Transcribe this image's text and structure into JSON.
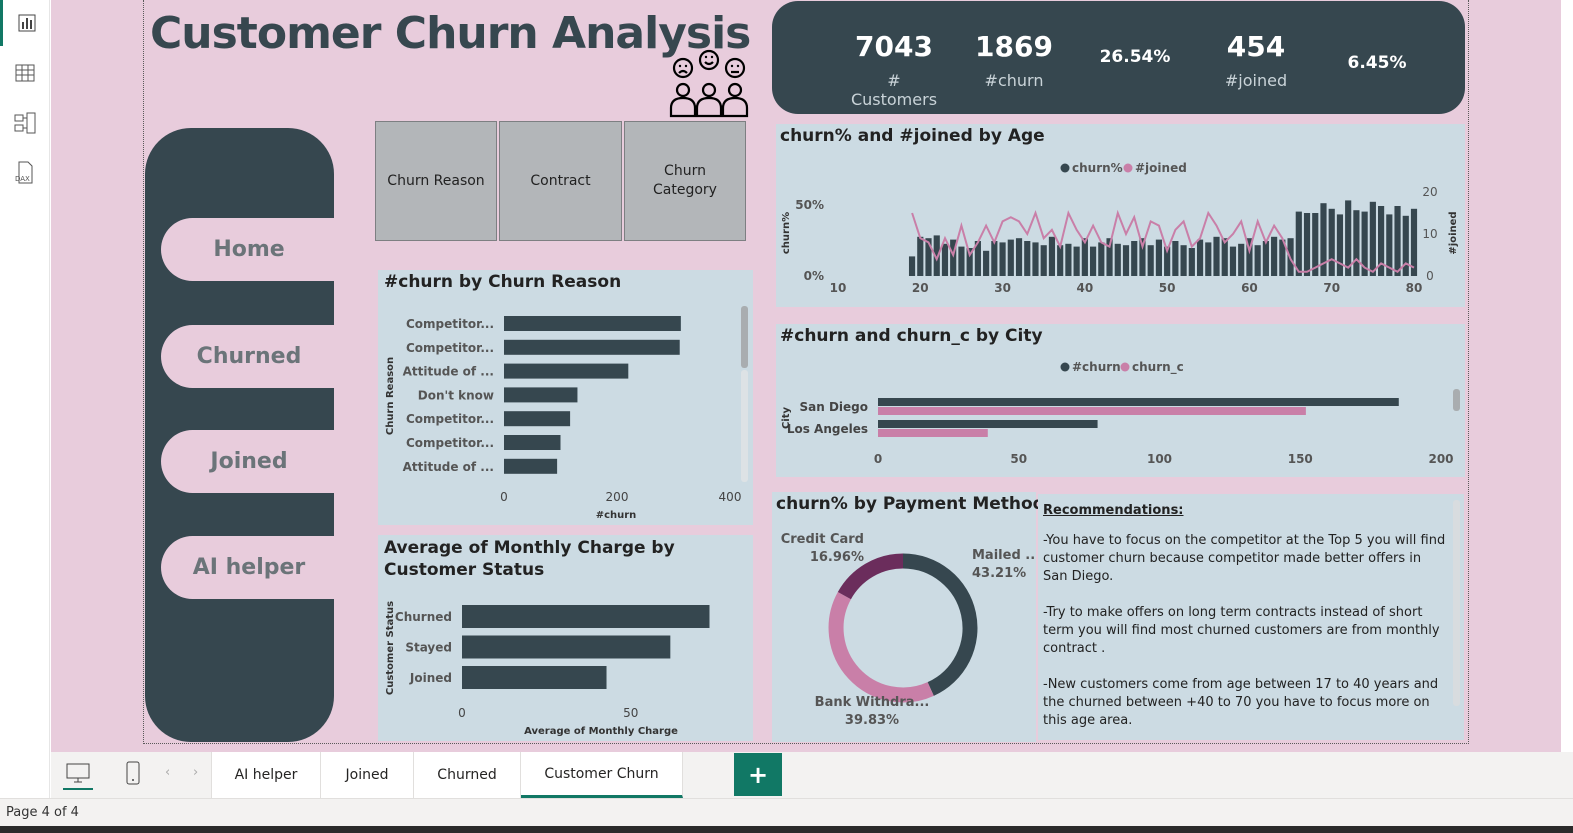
{
  "title": "Customer Churn Analysis",
  "kpis": [
    {
      "value": "7043",
      "label": "# Customers"
    },
    {
      "value": "1869",
      "label": "#churn"
    },
    {
      "value": "26.54%",
      "label": ""
    },
    {
      "value": "454",
      "label": "#joined"
    },
    {
      "value": "6.45%",
      "label": ""
    }
  ],
  "nav": [
    "Home",
    "Churned",
    "Joined",
    "AI helper"
  ],
  "slicers": [
    "Churn Reason",
    "Contract",
    "Churn Category"
  ],
  "colors": {
    "dark": "#36474f",
    "pink": "#c97fa8",
    "plum": "#6b2d5c",
    "panel": "#ccdbe3",
    "canvas": "#e8ccdc",
    "accent": "#117865"
  },
  "recommendations": {
    "heading": "Recommendations:",
    "items": [
      "-You have to focus on the competitor at the Top 5 you will find customer churn because competitor made better offers in San Diego.",
      "-Try to make offers on long term contracts instead of short term you will find most churned customers are from monthly contract .",
      "-New customers come from age between 17 to 40 years and the churned between +40 to 70 you have to focus more on this age area."
    ]
  },
  "tabs": [
    "AI helper",
    "Joined",
    "Churned",
    "Customer Churn"
  ],
  "add_tab": "+",
  "status": "Page 4 of 4",
  "chart_data": [
    {
      "type": "bar",
      "title": "#churn by Churn Reason",
      "xlabel": "#churn",
      "ylabel": "Churn Reason",
      "categories": [
        "Competitor...",
        "Competitor...",
        "Attitude of ...",
        "Don't know",
        "Competitor...",
        "Competitor...",
        "Attitude of ..."
      ],
      "values": [
        313,
        311,
        220,
        130,
        117,
        100,
        94
      ],
      "xticks": [
        "0",
        "200",
        "400"
      ],
      "xlim": [
        0,
        400
      ]
    },
    {
      "type": "bar",
      "title": "Average of Monthly Charge by Customer Status",
      "xlabel": "Average of Monthly Charge",
      "ylabel": "Customer Status",
      "categories": [
        "Churned",
        "Stayed",
        "Joined"
      ],
      "values": [
        73.3,
        61.7,
        42.8
      ],
      "xticks": [
        "0",
        "50"
      ],
      "xlim": [
        0,
        85
      ]
    },
    {
      "type": "bar+line",
      "title": "churn% and #joined by Age",
      "legend": [
        "churn%",
        "#joined"
      ],
      "ylabel": "churn%",
      "y2label": "#joined",
      "xticks": [
        "10",
        "20",
        "30",
        "40",
        "50",
        "60",
        "70",
        "80"
      ],
      "yticks": [
        "0%",
        "50%"
      ],
      "y2ticks": [
        "0",
        "10",
        "20"
      ],
      "ages": [
        19,
        20,
        21,
        22,
        23,
        24,
        25,
        26,
        27,
        28,
        29,
        30,
        31,
        32,
        33,
        34,
        35,
        36,
        37,
        38,
        39,
        40,
        41,
        42,
        43,
        44,
        45,
        46,
        47,
        48,
        49,
        50,
        51,
        52,
        53,
        54,
        55,
        56,
        57,
        58,
        59,
        60,
        61,
        62,
        63,
        64,
        65,
        66,
        67,
        68,
        69,
        70,
        71,
        72,
        73,
        74,
        75,
        76,
        77,
        78,
        79,
        80
      ],
      "churn_pct": [
        14,
        28,
        27,
        29,
        23,
        26,
        21,
        20,
        25,
        18,
        25,
        24,
        26,
        27,
        25,
        24,
        22,
        28,
        22,
        23,
        21,
        27,
        21,
        24,
        27,
        23,
        22,
        25,
        27,
        22,
        26,
        21,
        25,
        22,
        20,
        26,
        24,
        28,
        27,
        21,
        23,
        27,
        22,
        25,
        28,
        26,
        27,
        46,
        45,
        45,
        52,
        48,
        44,
        54,
        47,
        46,
        53,
        50,
        44,
        50,
        43,
        48
      ],
      "joined": [
        15,
        9,
        8,
        4,
        9,
        5,
        12,
        5,
        8,
        12,
        8,
        13,
        14,
        13,
        10,
        15,
        9,
        11,
        7,
        15,
        11,
        8,
        12,
        8,
        7,
        15,
        10,
        14,
        7,
        13,
        12,
        6,
        11,
        13,
        7,
        9,
        15,
        12,
        8,
        10,
        13,
        6,
        13,
        8,
        12,
        9,
        4,
        1,
        1,
        2,
        3,
        4,
        3,
        2,
        4,
        2,
        1,
        3,
        2,
        1,
        3,
        2
      ]
    },
    {
      "type": "bar",
      "title": "#churn and churn_c by City",
      "legend": [
        "#churn",
        "churn_c"
      ],
      "ylabel": "City",
      "categories": [
        "San Diego",
        "Los Angeles"
      ],
      "series": [
        {
          "name": "#churn",
          "values": [
            185,
            78
          ]
        },
        {
          "name": "churn_c",
          "values": [
            152,
            39
          ]
        }
      ],
      "xticks": [
        "0",
        "50",
        "100",
        "150",
        "200"
      ],
      "xlim": [
        0,
        200
      ]
    },
    {
      "type": "pie",
      "title": "churn% by Payment Method",
      "slices": [
        {
          "label": "Mailed ...",
          "value": 43.21,
          "text": "43.21%"
        },
        {
          "label": "Bank Withdra...",
          "value": 39.83,
          "text": "39.83%"
        },
        {
          "label": "Credit Card",
          "value": 16.96,
          "text": "16.96%"
        }
      ]
    }
  ]
}
